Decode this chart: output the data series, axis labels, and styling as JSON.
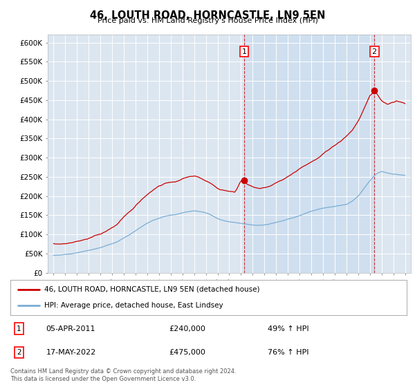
{
  "title": "46, LOUTH ROAD, HORNCASTLE, LN9 5EN",
  "subtitle": "Price paid vs. HM Land Registry's House Price Index (HPI)",
  "ylim": [
    0,
    620000
  ],
  "yticks": [
    0,
    50000,
    100000,
    150000,
    200000,
    250000,
    300000,
    350000,
    400000,
    450000,
    500000,
    550000,
    600000
  ],
  "ytick_labels": [
    "£0",
    "£50K",
    "£100K",
    "£150K",
    "£200K",
    "£250K",
    "£300K",
    "£350K",
    "£400K",
    "£450K",
    "£500K",
    "£550K",
    "£600K"
  ],
  "background_color": "#dce6f0",
  "grid_color": "#ffffff",
  "red_line_color": "#cc0000",
  "blue_line_color": "#7aadd4",
  "vline_color": "#cc0000",
  "legend_box1": "46, LOUTH ROAD, HORNCASTLE, LN9 5EN (detached house)",
  "legend_box2": "HPI: Average price, detached house, East Lindsey",
  "annotation1_date": "05-APR-2011",
  "annotation1_price": "£240,000",
  "annotation1_hpi": "49% ↑ HPI",
  "annotation2_date": "17-MAY-2022",
  "annotation2_price": "£475,000",
  "annotation2_hpi": "76% ↑ HPI",
  "footnote": "Contains HM Land Registry data © Crown copyright and database right 2024.\nThis data is licensed under the Open Government Licence v3.0.",
  "sale1_x": 2011.27,
  "sale1_y": 240000,
  "sale2_x": 2022.38,
  "sale2_y": 475000,
  "xlim_left": 1994.5,
  "xlim_right": 2025.5
}
